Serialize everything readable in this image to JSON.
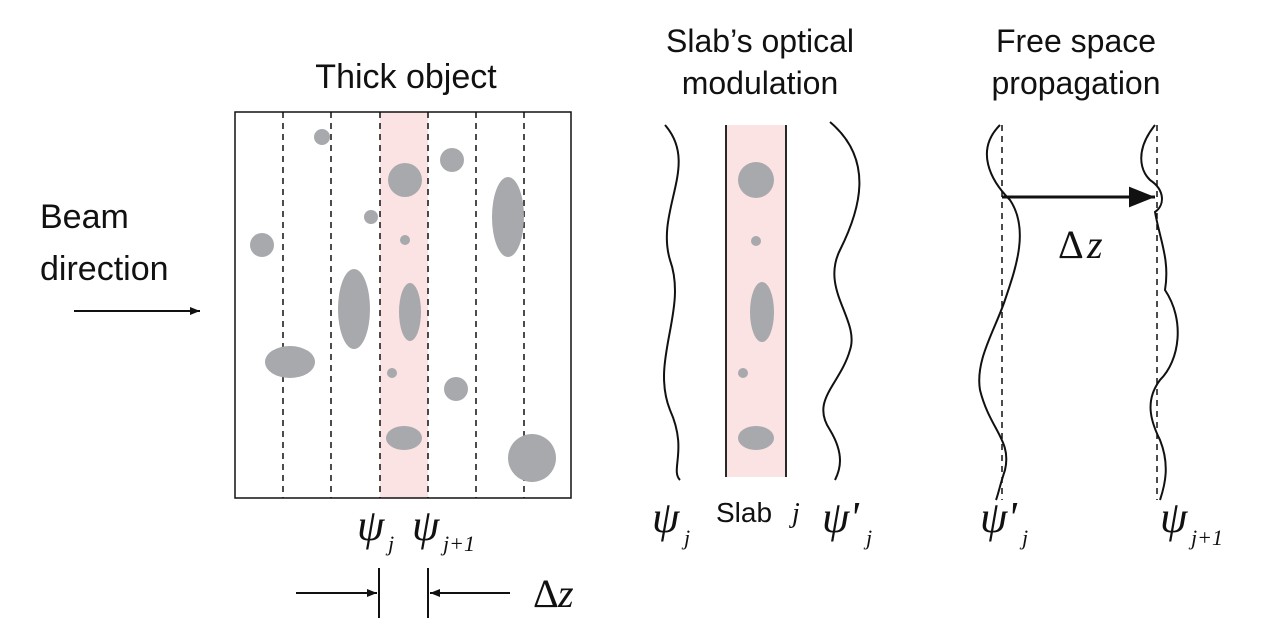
{
  "panels": {
    "thick_object": {
      "title": "Thick object",
      "beam_label_line1": "Beam",
      "beam_label_line2": "direction",
      "psi": "ψ",
      "sub_j": "j",
      "sub_j1": "j+1",
      "delta": "Δ",
      "z": "z"
    },
    "slab": {
      "title_line1": "Slab’s optical",
      "title_line2": "modulation",
      "psi": "ψ",
      "sub_j": "j",
      "slab_text": "Slab",
      "slab_index": "j",
      "psi_prime": "ψ'"
    },
    "free_space": {
      "title_line1": "Free space",
      "title_line2": "propagation",
      "psi_prime": "ψ'",
      "sub_j": "j",
      "psi": "ψ",
      "sub_j1": "j+1",
      "delta": "Δ",
      "z": "z"
    }
  },
  "colors": {
    "slab_highlight": "#fbe3e4",
    "particle": "#a7a9ac",
    "ink": "#111111"
  }
}
